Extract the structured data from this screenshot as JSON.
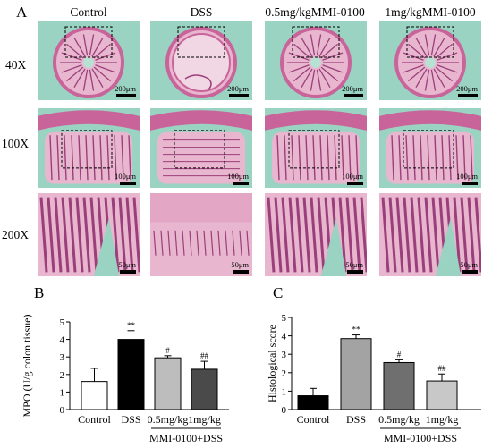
{
  "panel_a": {
    "letter": "A",
    "columns": [
      "Control",
      "DSS",
      "0.5mg/kgMMI-0100",
      "1mg/kgMMI-0100"
    ],
    "rows": [
      "40X",
      "100X",
      "200X"
    ],
    "scale_bars": [
      "200μm",
      "100μm",
      "50μm"
    ]
  },
  "panel_b": {
    "letter": "B",
    "group_label": "MMI-0100+DSS"
  },
  "panel_c": {
    "letter": "C",
    "group_label": "MMI-0100+DSS"
  },
  "chart_data": [
    {
      "type": "bar",
      "panel": "B",
      "ylabel": "MPO (U/g colon tissue)",
      "categories": [
        "Control",
        "DSS",
        "0.5mg/kg",
        "1mg/kg"
      ],
      "values": [
        1.6,
        4.0,
        2.95,
        2.3
      ],
      "errors": [
        0.75,
        0.5,
        0.12,
        0.45
      ],
      "significance": [
        "",
        "**",
        "#",
        "##"
      ],
      "bar_colors": [
        "#ffffff",
        "#000000",
        "#bdbdbd",
        "#4a4a4a"
      ],
      "ylim": [
        0,
        5
      ],
      "yticks": [
        0,
        1,
        2,
        3,
        4,
        5
      ],
      "grid": false
    },
    {
      "type": "bar",
      "panel": "C",
      "ylabel": "Histological score",
      "categories": [
        "Control",
        "DSS",
        "0.5mg/kg",
        "1mg/kg"
      ],
      "values": [
        0.75,
        3.85,
        2.55,
        1.55
      ],
      "errors": [
        0.4,
        0.2,
        0.15,
        0.38
      ],
      "significance": [
        "",
        "**",
        "#",
        "##"
      ],
      "bar_colors": [
        "#000000",
        "#a3a3a3",
        "#6f6f6f",
        "#c8c8c8"
      ],
      "ylim": [
        0,
        5
      ],
      "yticks": [
        0,
        1,
        2,
        3,
        4,
        5
      ],
      "grid": false
    }
  ]
}
